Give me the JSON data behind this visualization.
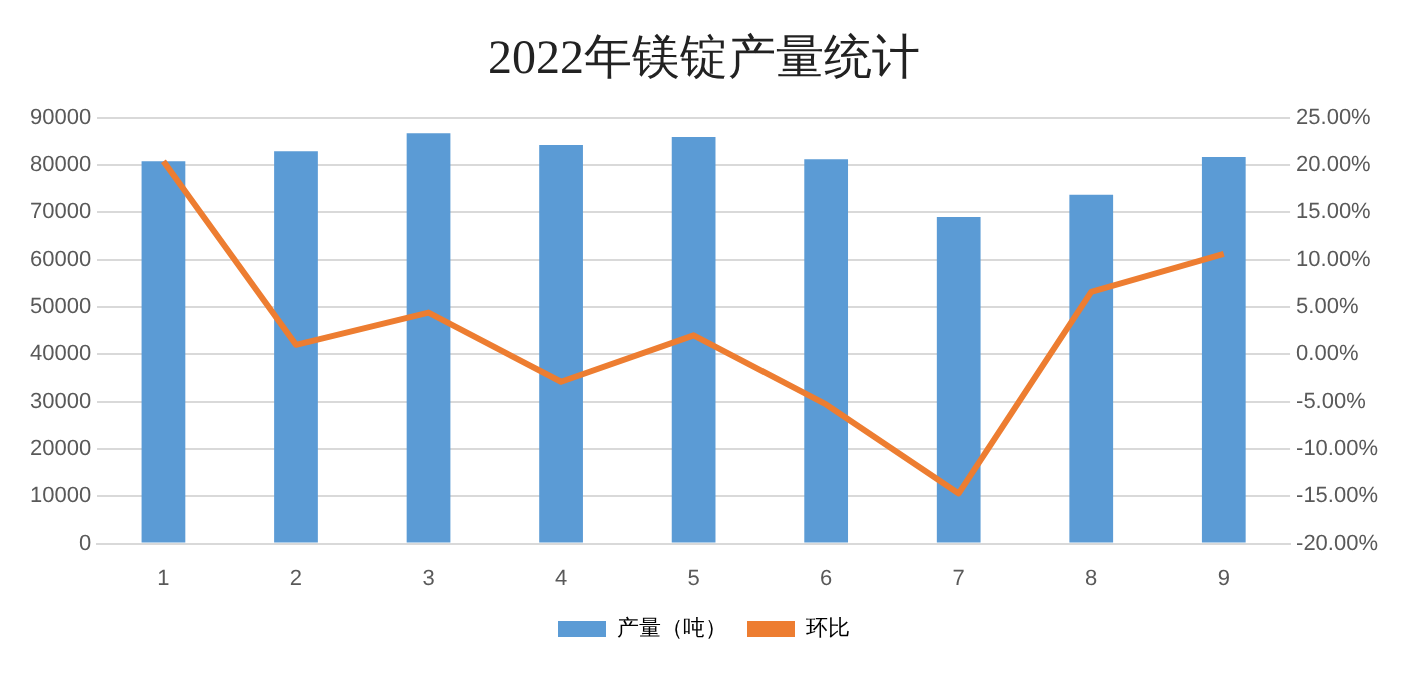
{
  "chart_data": {
    "type": "bar",
    "title": "2022年镁锭产量统计",
    "categories": [
      "1",
      "2",
      "3",
      "4",
      "5",
      "6",
      "7",
      "8",
      "9"
    ],
    "series": [
      {
        "name": "产量（吨）",
        "color": "#5b9bd5",
        "values": [
          80800,
          82900,
          86700,
          84200,
          85900,
          81200,
          69000,
          73700,
          81700
        ]
      },
      {
        "name": "环比",
        "type": "line",
        "axis": "y2",
        "color": "#ed7d31",
        "values": [
          20.4,
          1.0,
          4.4,
          -2.9,
          2.0,
          -5.3,
          -14.7,
          6.6,
          10.6
        ]
      }
    ],
    "ylim": [
      0,
      90000
    ],
    "yticks": [
      0,
      10000,
      20000,
      30000,
      40000,
      50000,
      60000,
      70000,
      80000,
      90000
    ],
    "y2lim": [
      -20,
      25
    ],
    "y2ticks": [
      {
        "value": -20,
        "label": "-20.00%"
      },
      {
        "value": -15,
        "label": "-15.00%"
      },
      {
        "value": -10,
        "label": "-10.00%"
      },
      {
        "value": -5,
        "label": "-5.00%"
      },
      {
        "value": 0,
        "label": "0.00%"
      },
      {
        "value": 5,
        "label": "5.00%"
      },
      {
        "value": 10,
        "label": "10.00%"
      },
      {
        "value": 15,
        "label": "15.00%"
      },
      {
        "value": 20,
        "label": "20.00%"
      },
      {
        "value": 25,
        "label": "25.00%"
      }
    ],
    "grid": "y",
    "legend": "bottom",
    "marker": "none",
    "line_style": "solid"
  }
}
